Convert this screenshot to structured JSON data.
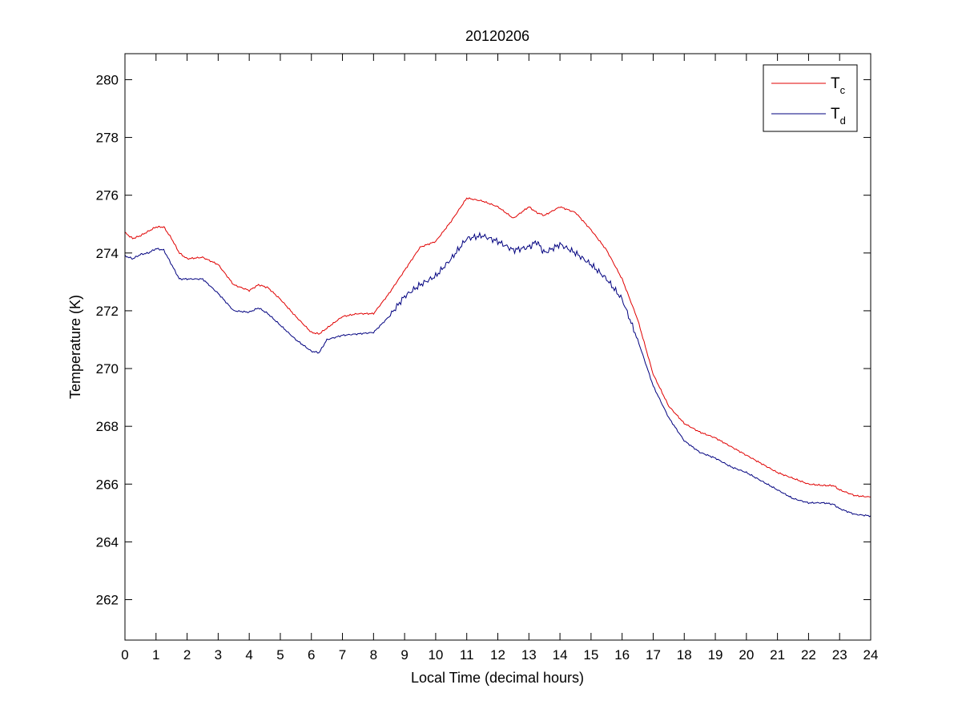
{
  "chart_data": {
    "type": "line",
    "title": "20120206",
    "xlabel": "Local Time (decimal hours)",
    "ylabel": "Temperature (K)",
    "xlim": [
      0,
      24
    ],
    "ylim": [
      260.6,
      280.9
    ],
    "x_ticks": [
      "0",
      "1",
      "2",
      "3",
      "4",
      "5",
      "6",
      "7",
      "8",
      "9",
      "10",
      "11",
      "12",
      "13",
      "14",
      "15",
      "16",
      "17",
      "18",
      "19",
      "20",
      "21",
      "22",
      "23",
      "24"
    ],
    "y_ticks": [
      "262",
      "264",
      "266",
      "268",
      "270",
      "272",
      "274",
      "276",
      "278",
      "280"
    ],
    "grid": false,
    "legend_position": "top-right",
    "series": [
      {
        "name": "T",
        "subscript": "c",
        "color": "#e00000",
        "x": [
          0,
          0.25,
          0.5,
          0.75,
          1.0,
          1.25,
          1.5,
          1.75,
          2.0,
          2.5,
          3.0,
          3.5,
          4.0,
          4.3,
          4.6,
          5.0,
          5.5,
          6.0,
          6.25,
          6.5,
          7.0,
          7.5,
          8.0,
          8.5,
          9.0,
          9.5,
          10.0,
          10.5,
          11.0,
          11.5,
          12.0,
          12.5,
          13.0,
          13.25,
          13.5,
          14.0,
          14.5,
          15.0,
          15.5,
          16.0,
          16.5,
          17.0,
          17.5,
          18.0,
          18.5,
          19.0,
          19.5,
          20.0,
          20.5,
          21.0,
          21.5,
          22.0,
          22.5,
          22.8,
          23.0,
          23.5,
          24.0
        ],
        "y": [
          274.7,
          274.5,
          274.6,
          274.75,
          274.9,
          274.9,
          274.5,
          274.0,
          273.8,
          273.85,
          273.6,
          272.9,
          272.7,
          272.9,
          272.8,
          272.4,
          271.8,
          271.25,
          271.2,
          271.4,
          271.8,
          271.9,
          271.9,
          272.6,
          273.4,
          274.2,
          274.4,
          275.1,
          275.9,
          275.8,
          275.6,
          275.2,
          275.6,
          275.4,
          275.3,
          275.6,
          275.4,
          274.8,
          274.1,
          273.1,
          271.7,
          269.8,
          268.7,
          268.1,
          267.8,
          267.6,
          267.3,
          267.0,
          266.7,
          266.4,
          266.2,
          266.0,
          265.95,
          265.95,
          265.8,
          265.6,
          265.55
        ]
      },
      {
        "name": "T",
        "subscript": "d",
        "color": "#00007f",
        "x": [
          0,
          0.25,
          0.5,
          0.75,
          1.0,
          1.25,
          1.5,
          1.75,
          2.0,
          2.5,
          3.0,
          3.5,
          4.0,
          4.3,
          4.6,
          5.0,
          5.5,
          6.0,
          6.25,
          6.5,
          7.0,
          7.5,
          8.0,
          8.5,
          9.0,
          9.5,
          10.0,
          10.5,
          11.0,
          11.5,
          12.0,
          12.5,
          13.0,
          13.25,
          13.5,
          14.0,
          14.5,
          15.0,
          15.5,
          16.0,
          16.5,
          17.0,
          17.5,
          18.0,
          18.5,
          19.0,
          19.5,
          20.0,
          20.5,
          21.0,
          21.5,
          22.0,
          22.5,
          22.8,
          23.0,
          23.5,
          24.0
        ],
        "y": [
          273.9,
          273.8,
          273.95,
          274.0,
          274.15,
          274.1,
          273.6,
          273.1,
          273.1,
          273.1,
          272.6,
          272.0,
          271.95,
          272.1,
          271.9,
          271.5,
          271.0,
          270.6,
          270.55,
          271.0,
          271.15,
          271.2,
          271.25,
          271.8,
          272.5,
          272.9,
          273.2,
          273.8,
          274.5,
          274.6,
          274.4,
          274.1,
          274.2,
          274.4,
          274.0,
          274.3,
          274.0,
          273.6,
          273.1,
          272.4,
          271.0,
          269.4,
          268.3,
          267.5,
          267.1,
          266.9,
          266.6,
          266.4,
          266.1,
          265.8,
          265.5,
          265.35,
          265.35,
          265.3,
          265.15,
          264.95,
          264.9
        ]
      }
    ]
  }
}
